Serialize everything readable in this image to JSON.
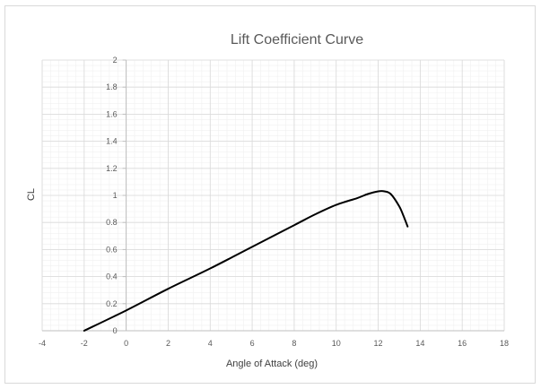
{
  "chart_data": {
    "type": "line",
    "title": "Lift Coefficient Curve",
    "xlabel": "Angle of Attack (deg)",
    "ylabel": "CL",
    "xlim": [
      -4,
      18
    ],
    "ylim": [
      0,
      2
    ],
    "x_major_step": 2,
    "y_major_step": 0.2,
    "x_minor_step": 0.4,
    "y_minor_step": 0.04,
    "grid": true,
    "legend": "none",
    "x_ticks": [
      "-4",
      "-2",
      "0",
      "2",
      "4",
      "6",
      "8",
      "10",
      "12",
      "14",
      "16",
      "18"
    ],
    "y_ticks": [
      "0",
      "0.2",
      "0.4",
      "0.6",
      "0.8",
      "1",
      "1.2",
      "1.4",
      "1.6",
      "1.8",
      "2"
    ],
    "series": [
      {
        "color": "#000000",
        "points": [
          [
            -2,
            0
          ],
          [
            0,
            0.15
          ],
          [
            2,
            0.31
          ],
          [
            4,
            0.46
          ],
          [
            6,
            0.62
          ],
          [
            8,
            0.78
          ],
          [
            9,
            0.86
          ],
          [
            10,
            0.93
          ],
          [
            11,
            0.98
          ],
          [
            11.5,
            1.01
          ],
          [
            12,
            1.03
          ],
          [
            12.3,
            1.03
          ],
          [
            12.6,
            1.01
          ],
          [
            13,
            0.92
          ],
          [
            13.2,
            0.85
          ],
          [
            13.4,
            0.77
          ]
        ]
      }
    ],
    "colors": {
      "major_grid": "#d9d9d9",
      "minor_grid": "#f0f0f0",
      "axis": "#bfbfbf",
      "line": "#000000"
    }
  }
}
